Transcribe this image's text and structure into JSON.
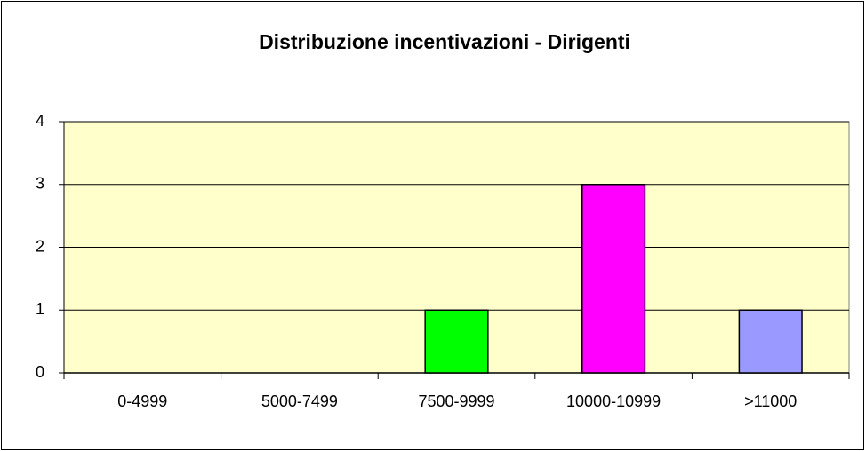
{
  "chart_data": {
    "type": "bar",
    "title": "Distribuzione incentivazioni - Dirigenti",
    "categories": [
      "0-4999",
      "5000-7499",
      "7500-9999",
      "10000-10999",
      ">11000"
    ],
    "values": [
      0,
      0,
      1,
      3,
      1
    ],
    "colors": [
      "#9999ff",
      "#993366",
      "#00ff00",
      "#ff00ff",
      "#9999ff"
    ],
    "ylim": [
      0,
      4
    ],
    "yticks": [
      0,
      1,
      2,
      3,
      4
    ],
    "grid": true,
    "plot_background": "#ffffcc"
  }
}
